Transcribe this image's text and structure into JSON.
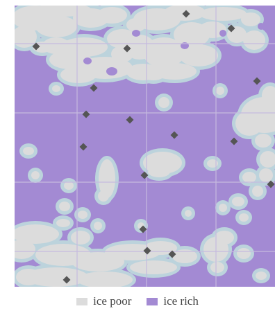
{
  "colors": {
    "ice_rich": "#a38ad3",
    "ice_poor": "#dcdcdc",
    "transition": "#bcd3dc",
    "grid": "#c6badf",
    "marker": "#555555"
  },
  "legend": [
    {
      "label": "ice poor",
      "color": "#dcdcdc"
    },
    {
      "label": "ice rich",
      "color": "#a38ad3"
    }
  ],
  "marker_count": 20
}
